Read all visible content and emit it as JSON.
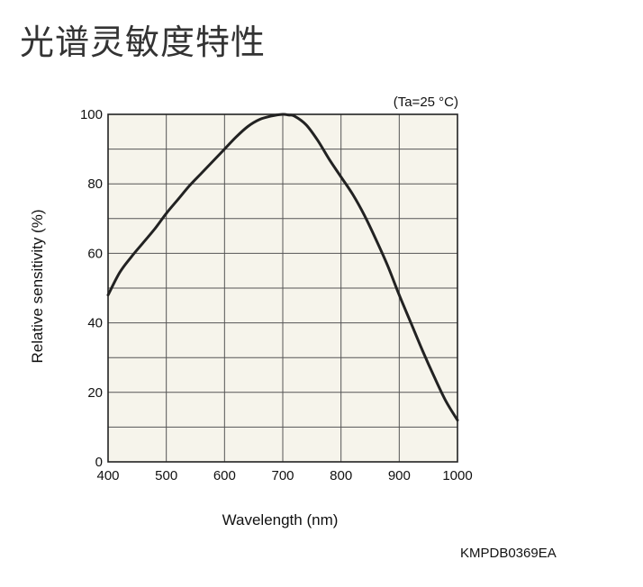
{
  "page": {
    "title": "光谱灵敏度特性",
    "code": "KMPDB0369EA"
  },
  "chart_data": {
    "type": "line",
    "title": "",
    "condition": "(Ta=25 °C)",
    "xlabel": "Wavelength (nm)",
    "ylabel": "Relative sensitivity (%)",
    "xlim": [
      400,
      1000
    ],
    "ylim": [
      0,
      100
    ],
    "x_ticks": [
      400,
      500,
      600,
      700,
      800,
      900,
      1000
    ],
    "y_ticks": [
      0,
      20,
      40,
      60,
      80,
      100
    ],
    "x_minor_step": 100,
    "y_minor_step": 10,
    "grid": true,
    "background_color": "#f6f4eb",
    "line_color": "#222222",
    "series": [
      {
        "x": [
          400,
          420,
          440,
          460,
          480,
          500,
          520,
          540,
          560,
          580,
          600,
          620,
          640,
          660,
          680,
          700,
          710,
          720,
          740,
          760,
          780,
          800,
          820,
          840,
          860,
          880,
          900,
          920,
          940,
          960,
          980,
          1000
        ],
        "values": [
          48,
          54.5,
          59,
          63,
          67,
          71.5,
          75.5,
          79.5,
          83,
          86.5,
          90,
          93.5,
          96.5,
          98.5,
          99.5,
          100,
          99.8,
          99.5,
          97,
          92.5,
          87,
          82,
          77,
          71,
          64,
          56.5,
          48,
          40,
          32,
          24.5,
          17.5,
          12
        ]
      }
    ]
  }
}
